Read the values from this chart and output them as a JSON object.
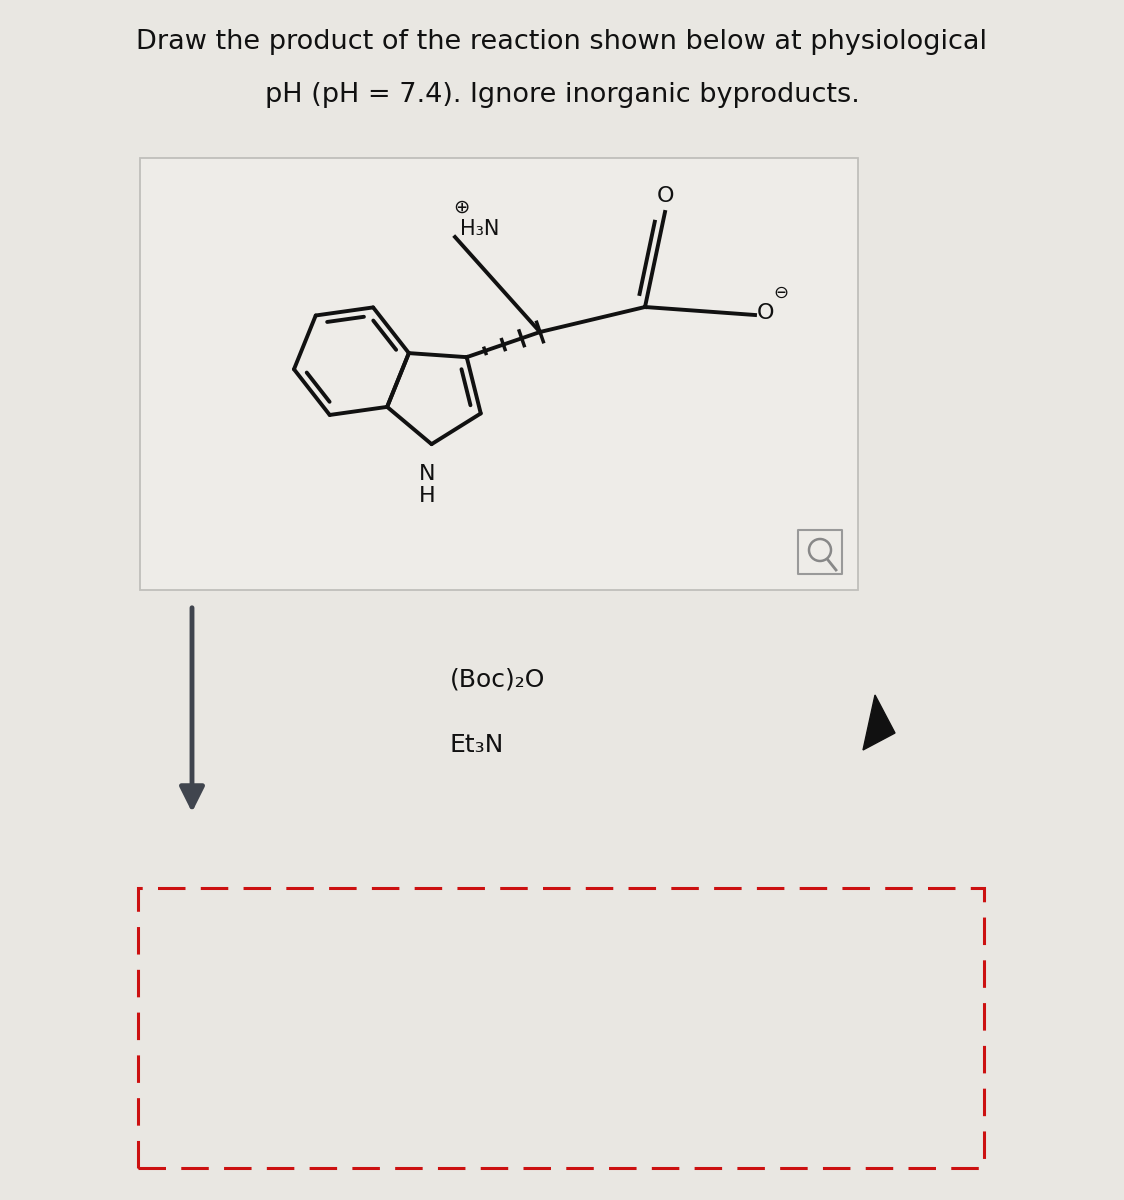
{
  "title_line1": "Draw the product of the reaction shown below at physiological",
  "title_line2": "pH (pH = 7.4). Ignore inorganic byproducts.",
  "bg_color": "#e9e7e2",
  "box_bg": "#eeece8",
  "box_border": "#c0bfbb",
  "reagent1": "(Boc)₂O",
  "reagent2": "Et₃N",
  "arrow_color": "#40454e",
  "dashed_box_color": "#cc1111",
  "bond_color": "#111111",
  "title_color": "#111111",
  "title_fontsize": 19.5,
  "mag_color": "#999999",
  "cursor_color": "#111111"
}
